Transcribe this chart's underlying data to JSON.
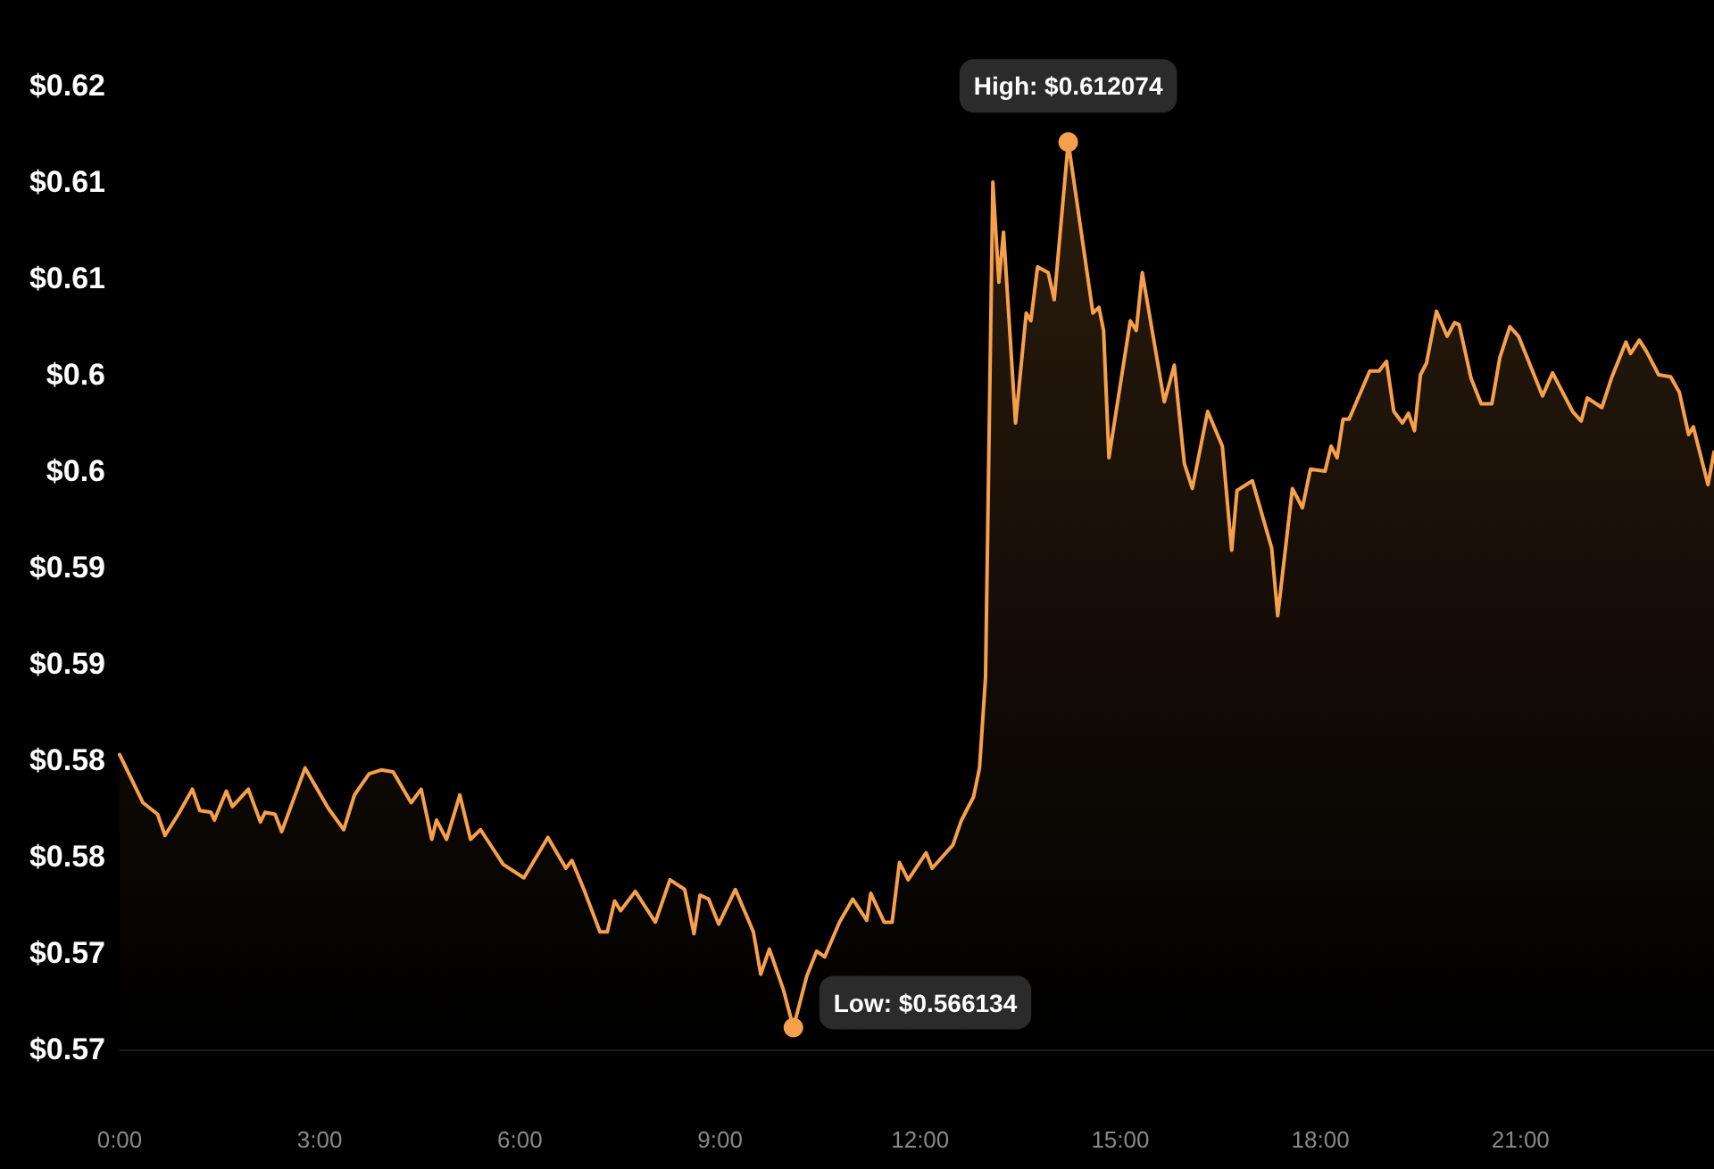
{
  "chart_data": {
    "type": "area",
    "color": "#f7a04b",
    "x": [
      0,
      0.35,
      0.57,
      0.68,
      0.88,
      1.09,
      1.2,
      1.37,
      1.42,
      1.6,
      1.69,
      1.93,
      2.11,
      2.18,
      2.33,
      2.43,
      2.78,
      3.13,
      3.36,
      3.52,
      3.74,
      3.92,
      4.1,
      4.37,
      4.52,
      4.68,
      4.75,
      4.9,
      5.1,
      5.26,
      5.41,
      5.75,
      6.06,
      6.42,
      6.69,
      6.78,
      6.96,
      7.2,
      7.31,
      7.42,
      7.51,
      7.73,
      8.03,
      8.25,
      8.47,
      8.61,
      8.7,
      8.83,
      8.98,
      9.23,
      9.5,
      9.61,
      9.74,
      9.95,
      10.1,
      10.3,
      10.45,
      10.57,
      10.79,
      10.99,
      11.2,
      11.26,
      11.46,
      11.58,
      11.69,
      11.82,
      12.09,
      12.18,
      12.49,
      12.62,
      12.8,
      12.89,
      12.98,
      13.09,
      13.18,
      13.25,
      13.43,
      13.59,
      13.66,
      13.76,
      13.92,
      14.01,
      14.22,
      14.59,
      14.68,
      14.75,
      14.83,
      15.15,
      15.24,
      15.33,
      15.66,
      15.81,
      15.96,
      16.08,
      16.31,
      16.53,
      16.67,
      16.75,
      16.98,
      17.27,
      17.36,
      17.58,
      17.73,
      17.85,
      18.07,
      18.16,
      18.25,
      18.34,
      18.43,
      18.74,
      18.88,
      18.99,
      19.1,
      19.23,
      19.32,
      19.41,
      19.5,
      19.59,
      19.74,
      19.9,
      20.01,
      20.08,
      20.26,
      20.41,
      20.57,
      20.69,
      20.84,
      20.97,
      21.33,
      21.48,
      21.78,
      21.91,
      22,
      22.22,
      22.36,
      22.58,
      22.65,
      22.78,
      22.89,
      23.07,
      23.25,
      23.38,
      23.52,
      23.59,
      23.81,
      23.9
    ],
    "values": [
      0.5803,
      0.5778,
      0.5772,
      0.5761,
      0.5772,
      0.5785,
      0.5774,
      0.5773,
      0.5769,
      0.5784,
      0.5776,
      0.5785,
      0.5768,
      0.5773,
      0.5772,
      0.5763,
      0.5796,
      0.5775,
      0.5764,
      0.5782,
      0.5793,
      0.5795,
      0.5794,
      0.5778,
      0.5785,
      0.5759,
      0.5769,
      0.5759,
      0.5782,
      0.5759,
      0.5764,
      0.5746,
      0.5739,
      0.576,
      0.5744,
      0.5748,
      0.5733,
      0.5711,
      0.5711,
      0.5727,
      0.5722,
      0.5732,
      0.5716,
      0.5738,
      0.5733,
      0.571,
      0.573,
      0.5728,
      0.5715,
      0.5733,
      0.5711,
      0.5689,
      0.5702,
      0.5681,
      0.566134,
      0.5688,
      0.5701,
      0.5698,
      0.5716,
      0.5728,
      0.5717,
      0.5731,
      0.5716,
      0.5716,
      0.5747,
      0.5738,
      0.5752,
      0.5744,
      0.5756,
      0.5769,
      0.5781,
      0.5796,
      0.5843,
      0.61,
      0.6048,
      0.6074,
      0.5975,
      0.6032,
      0.6028,
      0.6056,
      0.6053,
      0.6039,
      0.612074,
      0.6032,
      0.6035,
      0.6023,
      0.5957,
      0.6028,
      0.6023,
      0.6053,
      0.5986,
      0.6005,
      0.5954,
      0.5941,
      0.5981,
      0.5963,
      0.5909,
      0.594,
      0.5945,
      0.591,
      0.5875,
      0.5941,
      0.5931,
      0.5951,
      0.595,
      0.5963,
      0.5957,
      0.5977,
      0.5977,
      0.6002,
      0.6002,
      0.6007,
      0.5981,
      0.5975,
      0.598,
      0.5971,
      0.6,
      0.6006,
      0.6033,
      0.602,
      0.6027,
      0.6026,
      0.5998,
      0.5985,
      0.5985,
      0.6009,
      0.6025,
      0.602,
      0.5989,
      0.6001,
      0.5981,
      0.5976,
      0.5988,
      0.5983,
      0.5998,
      0.6017,
      0.6011,
      0.6018,
      0.6012,
      0.6,
      0.5999,
      0.5991,
      0.5969,
      0.5973,
      0.5943,
      0.596
    ],
    "xticks": [
      {
        "value": 0,
        "label": "0:00"
      },
      {
        "value": 3,
        "label": "3:00"
      },
      {
        "value": 6,
        "label": "6:00"
      },
      {
        "value": 9,
        "label": "9:00"
      },
      {
        "value": 12,
        "label": "12:00"
      },
      {
        "value": 15,
        "label": "15:00"
      },
      {
        "value": 18,
        "label": "18:00"
      },
      {
        "value": 21,
        "label": "21:00"
      }
    ],
    "xlim": [
      0,
      23.9
    ],
    "ylim": [
      0.565,
      0.615
    ],
    "yticks": [
      {
        "value": 0.565,
        "label": "$0.57"
      },
      {
        "value": 0.57,
        "label": "$0.57"
      },
      {
        "value": 0.575,
        "label": "$0.58"
      },
      {
        "value": 0.58,
        "label": "$0.58"
      },
      {
        "value": 0.585,
        "label": "$0.59"
      },
      {
        "value": 0.59,
        "label": "$0.59"
      },
      {
        "value": 0.595,
        "label": "$0.6"
      },
      {
        "value": 0.6,
        "label": "$0.6"
      },
      {
        "value": 0.605,
        "label": "$0.61"
      },
      {
        "value": 0.61,
        "label": "$0.61"
      },
      {
        "value": 0.615,
        "label": "$0.62"
      }
    ],
    "annotations": [
      {
        "text": "High: $0.612074",
        "x": 14.22,
        "y": 0.612074
      },
      {
        "text": "Low: $0.566134",
        "x": 10.1,
        "y": 0.566134
      }
    ],
    "grid": false,
    "marker": "none",
    "line_style": "solid"
  }
}
